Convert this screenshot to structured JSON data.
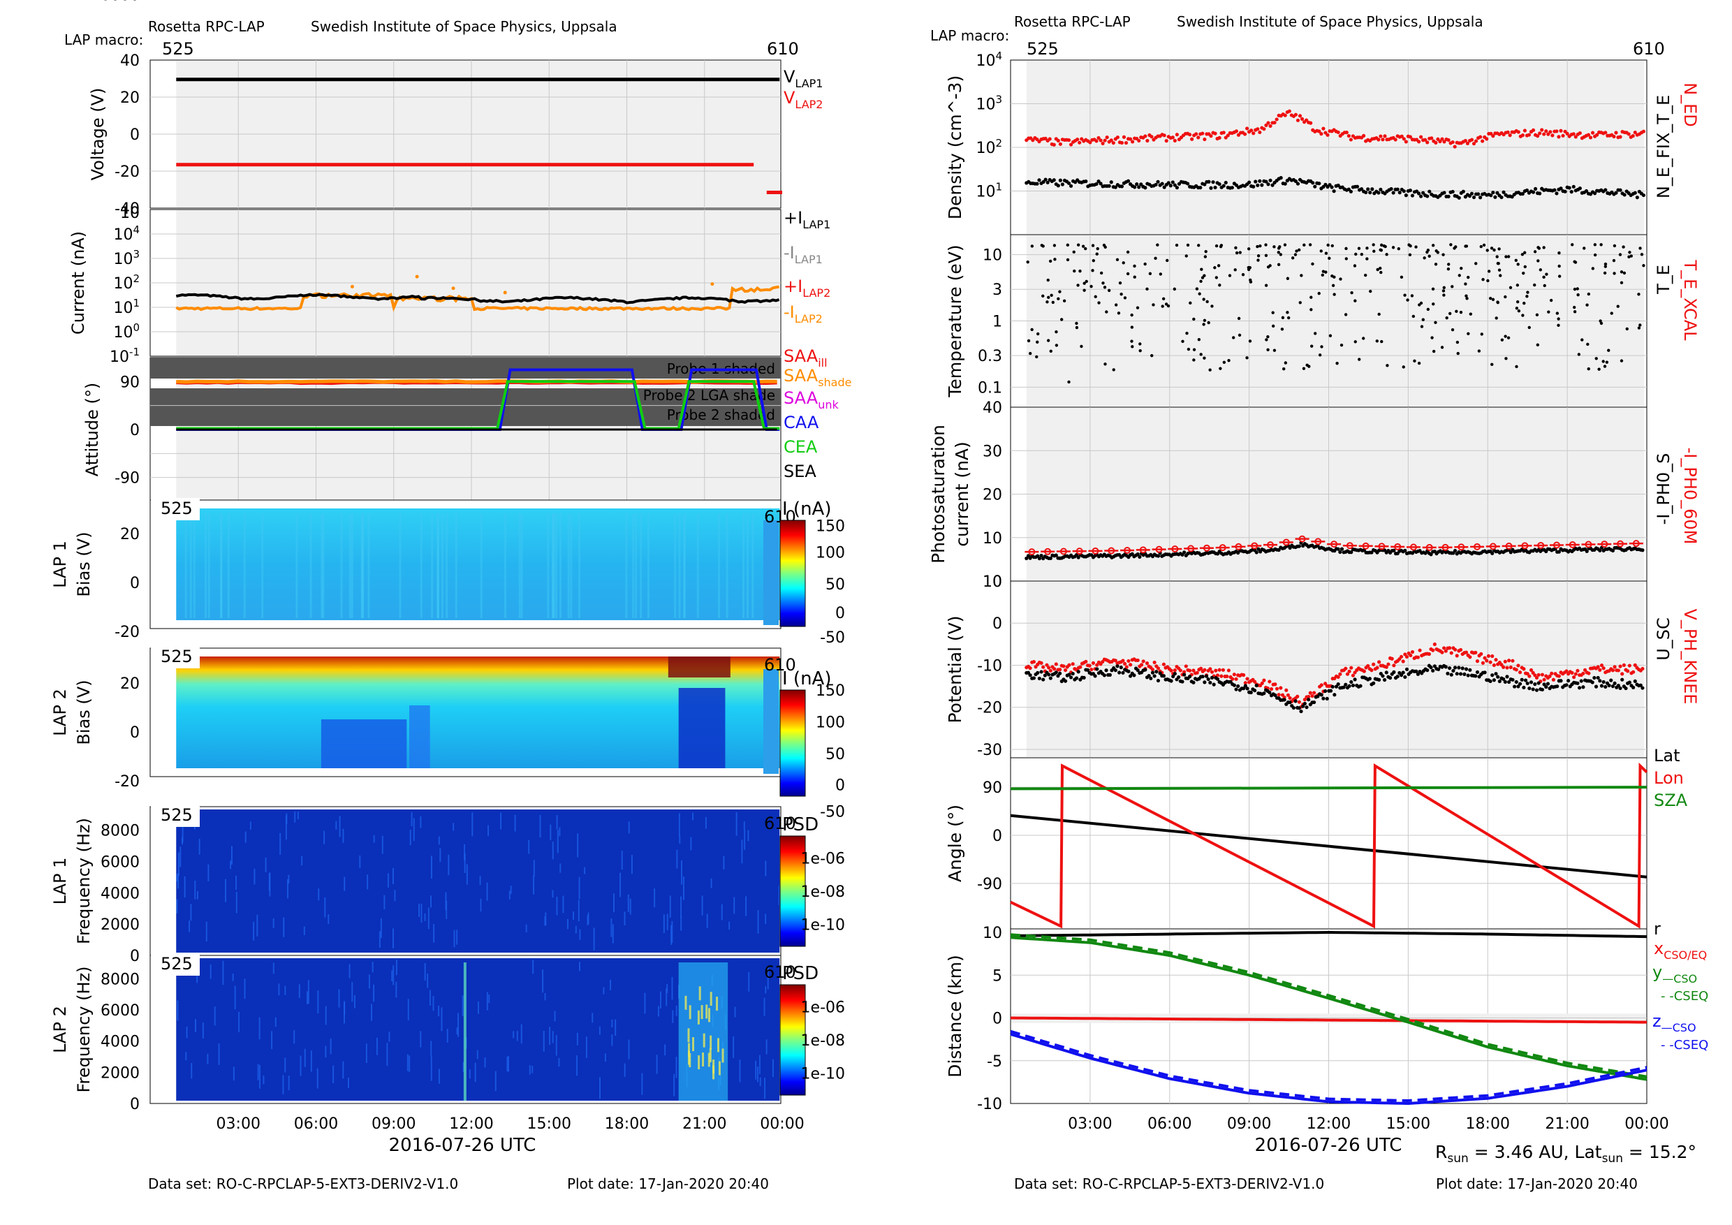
{
  "header": {
    "instrument": "Rosetta RPC-LAP",
    "institute": "Swedish Institute of Space Physics, Uppsala",
    "macro_label": "LAP macro:",
    "macro_start": "525",
    "macro_end": "610"
  },
  "footer": {
    "dataset": "Data set: RO-C-RPCLAP-5-EXT3-DERIV2-V1.0",
    "plot_date": "Plot date: 17-Jan-2020 20:40",
    "rsun_text": "R<sub>sun</sub> = 3.46 AU, Lat<sub>sun</sub> = 15.2°"
  },
  "time_axis": {
    "label": "2016-07-26 UTC",
    "range_hours": [
      0,
      24
    ],
    "ticks": [
      "03:00",
      "06:00",
      "09:00",
      "12:00",
      "15:00",
      "18:00",
      "21:00",
      "00:00"
    ]
  },
  "colors": {
    "black": "#000000",
    "red": "#ee1111",
    "orange": "#ff8c00",
    "gray": "#888888",
    "magenta": "#dd00dd",
    "blue": "#1010ee",
    "green": "#11cc11",
    "darkgreen": "#118811",
    "panel_bg": "#f0f0f0",
    "shade": "#555555"
  },
  "chart_data": [
    {
      "id": "voltage",
      "type": "line",
      "ylabel": "Voltage (V)",
      "ylim": [
        -40,
        40
      ],
      "yticks": [
        "40",
        "20",
        "0",
        "-20",
        "-40"
      ],
      "series": [
        {
          "name": "V_LAP1",
          "color": "#000000",
          "x": [
            0.6,
            23.9
          ],
          "y": [
            29.5,
            29.5
          ]
        },
        {
          "name": "V_LAP2",
          "color": "#ee1111",
          "x": [
            0.6,
            22.9
          ],
          "y": [
            -16.5,
            -16.5
          ]
        },
        {
          "name": "V_LAP2",
          "color": "#ee1111",
          "x": [
            23.4,
            24
          ],
          "y": [
            -31.5,
            -31.5
          ]
        }
      ]
    },
    {
      "id": "current",
      "type": "line",
      "ylabel": "Current (nA)",
      "scale": "log",
      "ylim": [
        0.1,
        100000
      ],
      "yticks": [
        "10^4",
        "10^3",
        "10^2",
        "10^1",
        "10^0",
        "10^-1"
      ],
      "series": [
        {
          "name": "+I_LAP1",
          "color": "#000000",
          "level": 25
        },
        {
          "name": "-I_LAP2",
          "color": "#ff8c00",
          "level": 10
        }
      ]
    },
    {
      "id": "attitude",
      "type": "line",
      "ylabel": "Attitude (°)",
      "ylim": [
        -135,
        135
      ],
      "yticks": [
        "90",
        "0",
        "-90"
      ],
      "bands": [
        "Probe 1 shaded",
        "Probe 2 LGA shade",
        "Probe 2 shaded"
      ],
      "series": [
        {
          "name": "SAA_ill",
          "color": "#ee1111",
          "value": 88
        },
        {
          "name": "SAA_shade",
          "color": "#ff8c00",
          "value": 90
        },
        {
          "name": "CAA",
          "color": "#1010ee",
          "x": [
            0,
            13.1,
            13.5,
            18.2,
            18.6,
            20.1,
            20.5,
            23.0,
            23.4,
            24
          ],
          "y": [
            0,
            0,
            112,
            112,
            0,
            0,
            112,
            112,
            0,
            0
          ]
        },
        {
          "name": "CEA",
          "color": "#11cc11",
          "x": [
            0,
            13.0,
            13.4,
            18.3,
            18.7,
            20.0,
            20.4,
            22.9,
            23.3,
            24
          ],
          "y": [
            2,
            2,
            90,
            90,
            2,
            2,
            90,
            90,
            2,
            2
          ]
        },
        {
          "name": "SEA",
          "color": "#000000",
          "value": 0
        }
      ]
    },
    {
      "id": "lap1_sweep",
      "type": "heatmap",
      "ylabel": "LAP 1 Bias (V)",
      "yticks": [
        "20",
        "0",
        "-20"
      ],
      "colorbar_title": "I (nA)",
      "colorbar_ticks": [
        "150",
        "100",
        "50",
        "0",
        "-50"
      ]
    },
    {
      "id": "lap2_sweep",
      "type": "heatmap",
      "ylabel": "LAP 2 Bias (V)",
      "yticks": [
        "20",
        "0",
        "-20"
      ],
      "colorbar_title": "I (nA)",
      "colorbar_ticks": [
        "150",
        "100",
        "50",
        "0",
        "-50"
      ]
    },
    {
      "id": "lap1_psd",
      "type": "heatmap",
      "ylabel": "LAP 1 Frequency (Hz)",
      "yticks": [
        "8000",
        "6000",
        "4000",
        "2000",
        "0"
      ],
      "colorbar_title": "PSD",
      "colorbar_ticks": [
        "1e-06",
        "1e-08",
        "1e-10"
      ]
    },
    {
      "id": "lap2_psd",
      "type": "heatmap",
      "ylabel": "LAP 2 Frequency (Hz)",
      "yticks": [
        "8000",
        "6000",
        "4000",
        "2000",
        "0"
      ],
      "colorbar_title": "PSD",
      "colorbar_ticks": [
        "1e-06",
        "1e-08",
        "1e-10"
      ]
    },
    {
      "id": "density",
      "type": "scatter",
      "ylabel": "Density (cm^-3)",
      "scale": "log",
      "ylim": [
        1,
        10000
      ],
      "yticks": [
        "10^4",
        "10^3",
        "10^2",
        "10^1"
      ],
      "side_labels": [
        "N_ED",
        "N_E_FIX_T_E"
      ],
      "series": [
        {
          "name": "N_ED",
          "color": "#ee1111",
          "x": [
            0.5,
            2,
            4,
            6,
            8,
            9.5,
            10.5,
            11.5,
            13,
            15,
            17,
            18.5,
            20,
            22,
            24
          ],
          "y": [
            150,
            130,
            150,
            170,
            190,
            260,
            600,
            260,
            170,
            160,
            120,
            200,
            220,
            190,
            210
          ]
        },
        {
          "name": "N_E_FIX_T_E",
          "color": "#000000",
          "x": [
            0.5,
            3,
            6,
            9,
            10.5,
            12,
            15,
            18,
            21,
            24
          ],
          "y": [
            16,
            15,
            14,
            14,
            18,
            12,
            9,
            8,
            11,
            8
          ]
        }
      ]
    },
    {
      "id": "temperature",
      "type": "scatter",
      "ylabel": "Temperature (eV)",
      "scale": "log",
      "ylim": [
        0.05,
        20
      ],
      "yticks": [
        "10",
        "3",
        "1",
        "0.3",
        "0.1"
      ],
      "side_labels": [
        "T_E_XCAL",
        "T_E"
      ]
    },
    {
      "id": "photosat",
      "type": "scatter",
      "ylabel": "Photosaturation current (nA)",
      "ylim": [
        0,
        40
      ],
      "yticks": [
        "40",
        "30",
        "20",
        "10",
        "0"
      ],
      "side_labels": [
        "-I_PH0_60M",
        "-I_PH0_S"
      ],
      "series": [
        {
          "name": "-I_PH0_S",
          "color": "#000000",
          "x": [
            0.5,
            4,
            8,
            10,
            11,
            12.5,
            16,
            20,
            24
          ],
          "y": [
            5.5,
            5.8,
            6.5,
            7.2,
            8.5,
            7,
            6.5,
            7,
            7.5
          ]
        }
      ]
    },
    {
      "id": "potential",
      "type": "scatter",
      "ylabel": "Potential (V)",
      "ylim": [
        -32,
        10
      ],
      "yticks": [
        "10",
        "0",
        "-10",
        "-20",
        "-30"
      ],
      "side_labels": [
        "V_PH_KNEE",
        "U_SC"
      ],
      "series": [
        {
          "name": "V_PH_KNEE",
          "color": "#ee1111",
          "x": [
            0.5,
            2,
            4,
            6,
            8,
            9.5,
            11,
            12.5,
            14,
            16,
            17.5,
            19,
            20,
            22,
            24
          ],
          "y": [
            -10,
            -11,
            -9,
            -11,
            -12,
            -14,
            -19,
            -12,
            -10,
            -6,
            -8,
            -10,
            -13,
            -11,
            -11
          ]
        },
        {
          "name": "U_SC",
          "color": "#000000",
          "x": [
            0.5,
            2,
            4,
            6,
            8,
            9.5,
            11,
            12.5,
            14,
            16,
            17.5,
            19,
            20,
            22,
            24
          ],
          "y": [
            -12,
            -13,
            -11,
            -13,
            -14,
            -16,
            -20,
            -15,
            -13,
            -11,
            -12,
            -14,
            -15,
            -14,
            -15
          ]
        }
      ]
    },
    {
      "id": "angle",
      "type": "line",
      "ylabel": "Angle (°)",
      "ylim": [
        -175,
        145
      ],
      "yticks": [
        "90",
        "0",
        "-90"
      ],
      "series": [
        {
          "name": "Lat",
          "color": "#000000",
          "x": [
            0,
            24
          ],
          "y": [
            37,
            -78
          ]
        },
        {
          "name": "Lon",
          "color": "#ee1111",
          "x": [
            0,
            1.9,
            1.95,
            13.7,
            13.75,
            23.7,
            23.75,
            24
          ],
          "y": [
            -125,
            -170,
            130,
            -170,
            130,
            -170,
            130,
            118
          ]
        },
        {
          "name": "SZA",
          "color": "#118811",
          "x": [
            0,
            24
          ],
          "y": [
            87,
            90
          ]
        }
      ]
    },
    {
      "id": "distance",
      "type": "line",
      "ylabel": "Distance (km)",
      "ylim": [
        -10,
        10
      ],
      "yticks": [
        "10",
        "5",
        "0",
        "-5",
        "-10"
      ],
      "series": [
        {
          "name": "r",
          "color": "#000000",
          "x": [
            0,
            6,
            12,
            18,
            24
          ],
          "y": [
            9.6,
            9.8,
            10,
            9.8,
            9.5
          ]
        },
        {
          "name": "x CSO/EQ",
          "color": "#ee1111",
          "x": [
            0,
            24
          ],
          "y": [
            0,
            -0.5
          ]
        },
        {
          "name": "y CSO",
          "color": "#118811",
          "x": [
            0,
            3,
            6,
            9,
            12,
            15,
            18,
            21,
            24
          ],
          "y": [
            9.4,
            8.8,
            7.3,
            5.0,
            2.3,
            -0.5,
            -3.4,
            -5.6,
            -7.2
          ]
        },
        {
          "name": "z CSO",
          "color": "#1010ee",
          "x": [
            0,
            3,
            6,
            9,
            12,
            15,
            18,
            21,
            24
          ],
          "y": [
            -1.9,
            -4.7,
            -7.1,
            -8.8,
            -9.8,
            -10,
            -9.4,
            -8.0,
            -6.1
          ]
        }
      ]
    }
  ]
}
